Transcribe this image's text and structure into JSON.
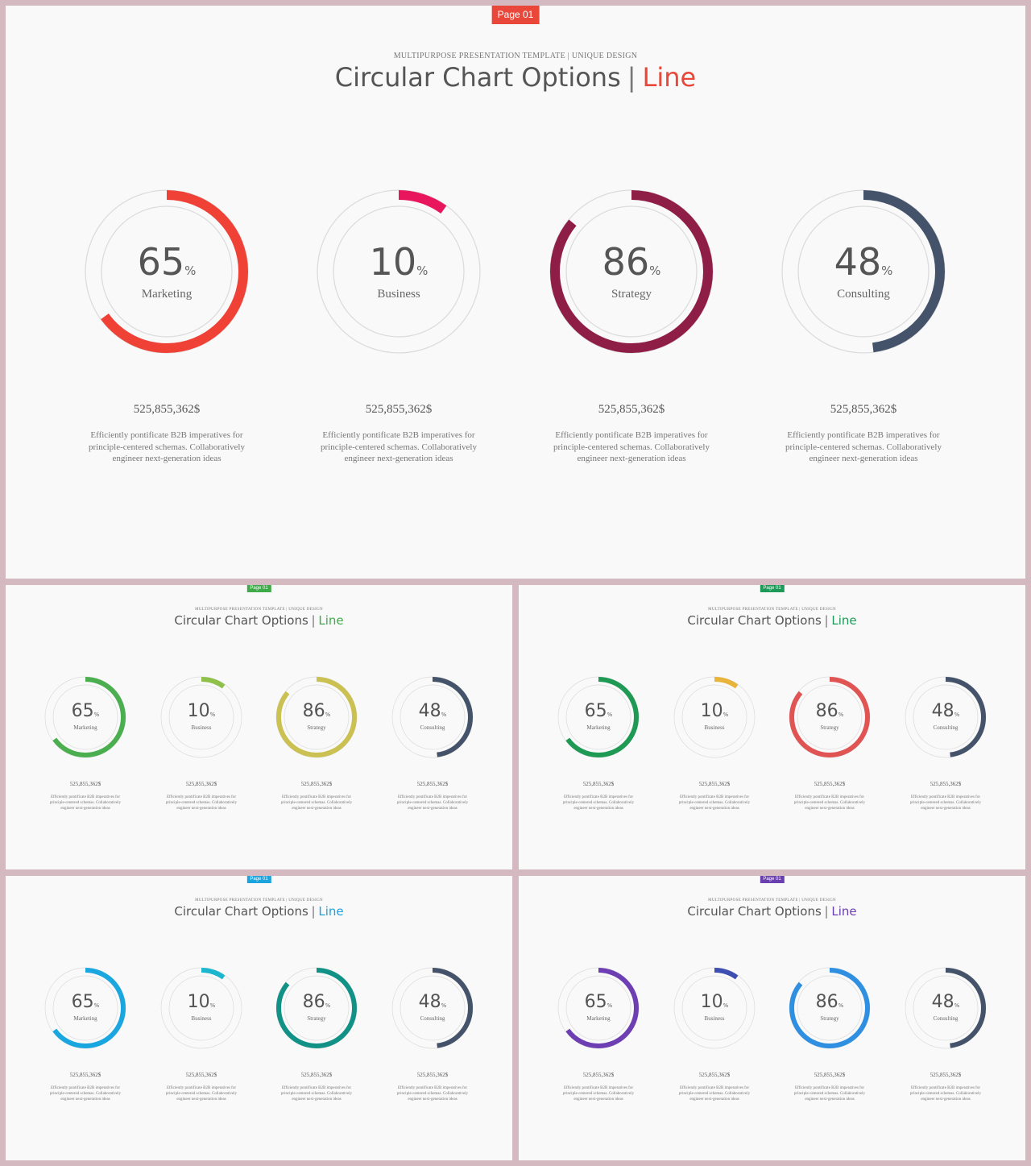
{
  "kicker": "MULTIPURPOSE PRESENTATION TEMPLATE | UNIQUE DESIGN",
  "title_main": "Circular Chart Options",
  "title_sep": "|",
  "title_accent": "Line",
  "badge": "Page 01",
  "percent_sign": "%",
  "items": [
    {
      "value": 65,
      "label": "Marketing",
      "amount": "525,855,362$",
      "desc": "Efficiently pontificate B2B imperatives for principle-centered schemas. Collaboratively engineer next-generation ideas"
    },
    {
      "value": 10,
      "label": "Business",
      "amount": "525,855,362$",
      "desc": "Efficiently pontificate B2B imperatives for principle-centered schemas. Collaboratively engineer next-generation ideas"
    },
    {
      "value": 86,
      "label": "Strategy",
      "amount": "525,855,362$",
      "desc": "Efficiently pontificate B2B imperatives for principle-centered schemas. Collaboratively engineer next-generation ideas"
    },
    {
      "value": 48,
      "label": "Consulting",
      "amount": "525,855,362$",
      "desc": "Efficiently pontificate B2B imperatives for principle-centered schemas. Collaboratively engineer next-generation ideas"
    }
  ],
  "slides": [
    {
      "variant": "large",
      "badge_color": "#e8473a",
      "accent_color": "#e8473a",
      "ring_colors": [
        "#ef4136",
        "#e8175d",
        "#8f1e47",
        "#44536a"
      ]
    },
    {
      "variant": "small",
      "badge_color": "#3faa4a",
      "accent_color": "#3faa4a",
      "ring_colors": [
        "#4bae4f",
        "#8fc14a",
        "#cbc152",
        "#44536a"
      ]
    },
    {
      "variant": "small",
      "badge_color": "#1e9a58",
      "accent_color": "#1e9a58",
      "ring_colors": [
        "#1f9a55",
        "#e9b43c",
        "#e05454",
        "#44536a"
      ]
    },
    {
      "variant": "small",
      "badge_color": "#1aa3dc",
      "accent_color": "#1aa3dc",
      "ring_colors": [
        "#1aa7e0",
        "#1cb6cf",
        "#129186",
        "#44536a"
      ]
    },
    {
      "variant": "small",
      "badge_color": "#6a3fb0",
      "accent_color": "#6a3fb0",
      "ring_colors": [
        "#6d3fb2",
        "#3d4fb0",
        "#2f8fe0",
        "#44536a"
      ]
    }
  ]
}
